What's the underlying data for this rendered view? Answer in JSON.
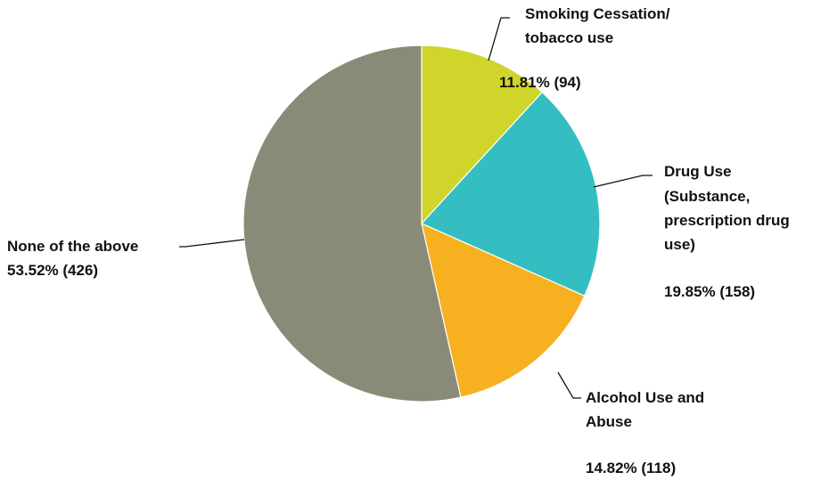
{
  "chart_data": {
    "type": "pie",
    "start_angle": "12 o'clock",
    "direction": "clockwise",
    "slices": [
      {
        "name": "Smoking Cessation/ tobacco use",
        "label_lines": [
          "Smoking Cessation/",
          "tobacco use"
        ],
        "value_label": "11.81% (94)",
        "percent": 11.81,
        "count": 94,
        "color": "#cfd52b"
      },
      {
        "name": "Drug Use (Substance, prescription drug use)",
        "label_lines": [
          "Drug Use",
          "(Substance,",
          "prescription drug",
          "use)"
        ],
        "value_label": "19.85% (158)",
        "percent": 19.85,
        "count": 158,
        "color": "#34bec1"
      },
      {
        "name": "Alcohol Use and Abuse",
        "label_lines": [
          "Alcohol Use and",
          "Abuse"
        ],
        "value_label": "14.82% (118)",
        "percent": 14.82,
        "count": 118,
        "color": "#f6b020"
      },
      {
        "name": "None of the above",
        "label_lines": [
          "None of the above"
        ],
        "value_label": "53.52% (426)",
        "percent": 53.52,
        "count": 426,
        "color": "#8a8a78"
      }
    ]
  }
}
